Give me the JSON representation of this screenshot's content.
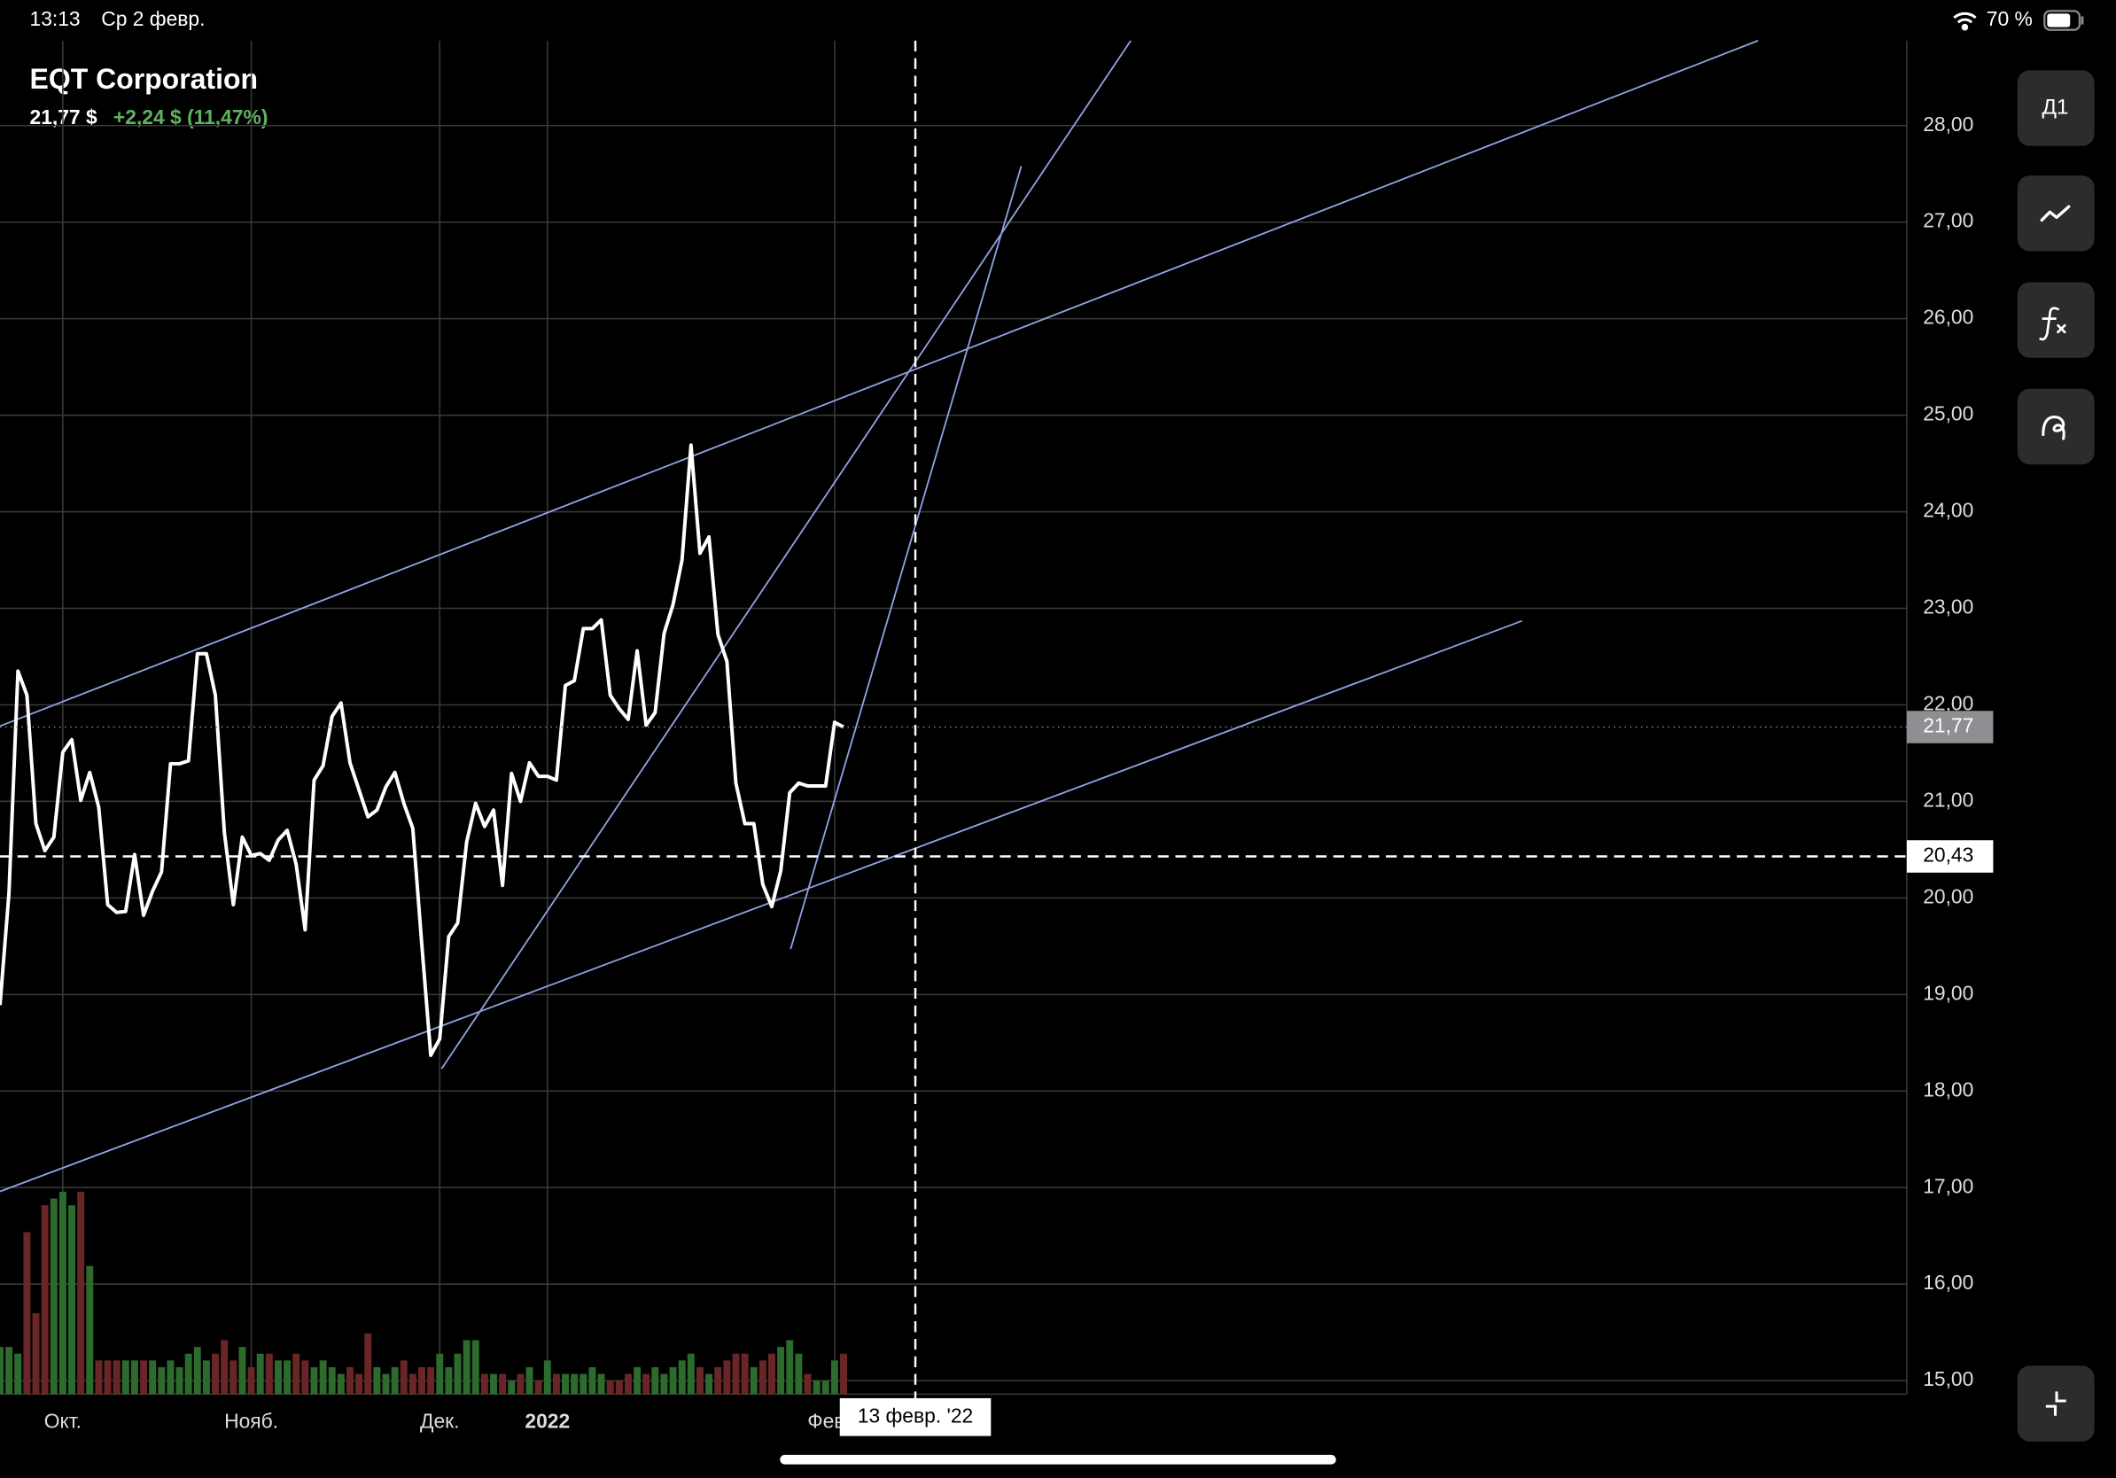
{
  "status_bar": {
    "time": "13:13",
    "date": "Ср 2 февр.",
    "battery": "70 %"
  },
  "header": {
    "price": "21,77 $",
    "change": "+2,24 $ (11,47%)"
  },
  "toolbar": {
    "period": "Д1"
  },
  "chart_data": {
    "type": "line",
    "title": "EQT Corporation",
    "color": "#ffffff",
    "grid": true,
    "ylim": [
      14.86,
      28.88
    ],
    "yticks": [
      {
        "value": 15,
        "label": "15,00"
      },
      {
        "value": 16,
        "label": "16,00"
      },
      {
        "value": 17,
        "label": "17,00"
      },
      {
        "value": 18,
        "label": "18,00"
      },
      {
        "value": 19,
        "label": "19,00"
      },
      {
        "value": 20,
        "label": "20,00"
      },
      {
        "value": 21,
        "label": "21,00"
      },
      {
        "value": 22,
        "label": "22,00"
      },
      {
        "value": 23,
        "label": "23,00"
      },
      {
        "value": 24,
        "label": "24,00"
      },
      {
        "value": 25,
        "label": "25,00"
      },
      {
        "value": 26,
        "label": "26,00"
      },
      {
        "value": 27,
        "label": "27,00"
      },
      {
        "value": 28,
        "label": "28,00"
      }
    ],
    "categories": [
      null,
      null,
      null,
      null,
      null,
      null,
      null,
      "Окт.",
      null,
      null,
      null,
      null,
      null,
      null,
      null,
      null,
      null,
      null,
      null,
      null,
      null,
      null,
      null,
      null,
      null,
      null,
      null,
      null,
      "Нояб.",
      null,
      null,
      null,
      null,
      null,
      null,
      null,
      null,
      null,
      null,
      null,
      null,
      null,
      null,
      null,
      null,
      null,
      null,
      null,
      null,
      "Дек.",
      null,
      null,
      null,
      null,
      null,
      null,
      null,
      null,
      null,
      null,
      null,
      "2022",
      null,
      null,
      null,
      null,
      null,
      null,
      null,
      null,
      null,
      null,
      null,
      null,
      null,
      null,
      null,
      null,
      null,
      null,
      null,
      null,
      null,
      null,
      null,
      null,
      null,
      null,
      null,
      null,
      null,
      null,
      null,
      "Февр.",
      null
    ],
    "values": [
      18.89,
      20.05,
      22.35,
      22.1,
      20.77,
      20.49,
      20.63,
      21.51,
      21.64,
      21.01,
      21.3,
      20.94,
      19.93,
      19.85,
      19.86,
      20.45,
      19.82,
      20.07,
      20.27,
      21.39,
      21.39,
      21.42,
      22.53,
      22.53,
      22.1,
      20.68,
      19.93,
      20.63,
      20.44,
      20.46,
      20.39,
      20.6,
      20.7,
      20.35,
      19.67,
      21.22,
      21.37,
      21.88,
      22.02,
      21.4,
      21.12,
      20.84,
      20.91,
      21.15,
      21.3,
      20.98,
      20.72,
      19.52,
      18.37,
      18.54,
      19.6,
      19.74,
      20.58,
      20.98,
      20.74,
      20.91,
      20.13,
      21.29,
      21.0,
      21.4,
      21.26,
      21.26,
      21.22,
      22.2,
      22.25,
      22.79,
      22.79,
      22.88,
      22.1,
      21.96,
      21.85,
      22.56,
      21.79,
      21.92,
      22.74,
      23.04,
      23.5,
      24.69,
      23.57,
      23.74,
      22.73,
      22.45,
      21.19,
      20.77,
      20.77,
      20.14,
      19.91,
      20.28,
      21.09,
      21.19,
      21.16,
      21.16,
      21.16,
      21.82,
      21.77
    ],
    "volume": {
      "up_color": "#2d6a2d",
      "down_color": "#6a2626",
      "values": [
        35,
        35,
        30,
        120,
        60,
        140,
        145,
        150,
        140,
        150,
        95,
        25,
        25,
        25,
        25,
        25,
        25,
        25,
        20,
        25,
        20,
        30,
        35,
        25,
        30,
        40,
        25,
        35,
        20,
        30,
        30,
        25,
        25,
        30,
        25,
        20,
        25,
        20,
        15,
        20,
        15,
        45,
        20,
        15,
        20,
        25,
        15,
        20,
        20,
        30,
        20,
        30,
        40,
        40,
        15,
        15,
        15,
        10,
        15,
        20,
        10,
        25,
        15,
        15,
        15,
        15,
        20,
        15,
        10,
        10,
        15,
        20,
        15,
        20,
        15,
        20,
        25,
        30,
        20,
        15,
        20,
        25,
        30,
        30,
        20,
        25,
        30,
        35,
        40,
        30,
        15,
        10,
        10,
        25,
        30
      ]
    },
    "last_price": {
      "value": 21.77,
      "label": "21,77"
    },
    "crosshair": {
      "index": 102,
      "date_label": "13 февр. '22",
      "price": {
        "value": 20.43,
        "label": "20,43"
      }
    },
    "trend_color": "#8fa3e0",
    "trend_lines": [
      {
        "x": [
          0,
          195.9
        ],
        "y": [
          21.78,
          28.88
        ]
      },
      {
        "x": [
          0,
          169.6
        ],
        "y": [
          16.96,
          22.87
        ]
      },
      {
        "x": [
          49.2,
          126.0
        ],
        "y": [
          18.23,
          28.88
        ]
      },
      {
        "x": [
          88.1,
          113.8
        ],
        "y": [
          19.47,
          27.58
        ]
      }
    ]
  }
}
